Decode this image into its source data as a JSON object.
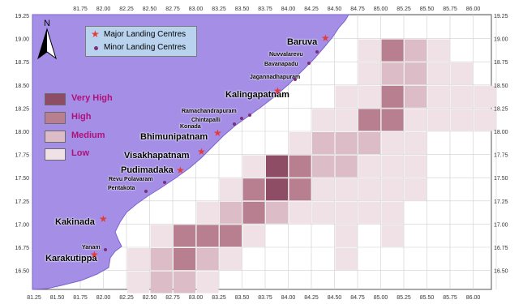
{
  "legend": {
    "major_label": "Major Landing Centres",
    "minor_label": "Minor Landing Centres"
  },
  "north_label": "N",
  "intensity_key": [
    {
      "label": "Very High",
      "color": "#8e4d64"
    },
    {
      "label": "High",
      "color": "#b77f90"
    },
    {
      "label": "Medium",
      "color": "#dcbcc6"
    },
    {
      "label": "Low",
      "color": "#efe1e5"
    }
  ],
  "x_ticks": [
    "81.25",
    "81.50",
    "81.75",
    "82.00",
    "82.25",
    "82.50",
    "82.75",
    "83.00",
    "83.25",
    "83.50",
    "83.75",
    "84.00",
    "84.25",
    "84.50",
    "84.75",
    "85.00",
    "85.25",
    "85.50",
    "85.75",
    "86.00",
    "86.25"
  ],
  "top_ticks": [
    "81.75",
    "82.00",
    "82.25",
    "82.50",
    "82.75",
    "83.00",
    "83.25",
    "83.50",
    "83.75",
    "84.00",
    "84.25",
    "84.50",
    "84.75",
    "85.00",
    "85.25",
    "85.50",
    "85.75",
    "86.00",
    "86.25"
  ],
  "y_ticks": [
    "19.25",
    "19.00",
    "18.75",
    "18.50",
    "18.25",
    "18.00",
    "17.75",
    "17.50",
    "17.25",
    "17.00",
    "16.75",
    "16.50"
  ],
  "y_ticks_right": [
    "19.25",
    "19.00",
    "18.75",
    "18.50",
    "18.25",
    "18.00",
    "17.75",
    "17.50",
    "17.25",
    "17.00",
    "16.75",
    "16.50"
  ],
  "places_major": [
    "Baruva",
    "Kalingapatnam",
    "Bhimunipatnam",
    "Visakhapatnam",
    "Pudimadaka",
    "Kakinada",
    "Karakutippa"
  ],
  "places_minor": [
    "Nuvvalarevu",
    "Bavanapadu",
    "Jagannadhapuram",
    "Ramachandrapuram",
    "Chintapalli",
    "Konada",
    "Revu Polavaram",
    "Pentakota",
    "Yanam"
  ],
  "colors": {
    "land": "#a58fe6",
    "land_edge": "#7b63cf",
    "sea": "#ffffff",
    "grid": "#cfcfcf",
    "star": "#e23b3b",
    "minor_dot": "#7a2f7a",
    "label_accent": "#b0107a"
  },
  "cells": [
    {
      "lon": 85.0,
      "lat": 19.0,
      "level": "high"
    },
    {
      "lon": 85.25,
      "lat": 19.0,
      "level": "medium"
    },
    {
      "lon": 85.5,
      "lat": 19.0,
      "level": "low"
    },
    {
      "lon": 84.75,
      "lat": 19.0,
      "level": "low"
    },
    {
      "lon": 85.0,
      "lat": 18.75,
      "level": "medium"
    },
    {
      "lon": 85.25,
      "lat": 18.75,
      "level": "medium"
    },
    {
      "lon": 85.5,
      "lat": 18.75,
      "level": "low"
    },
    {
      "lon": 85.75,
      "lat": 18.75,
      "level": "low"
    },
    {
      "lon": 84.75,
      "lat": 18.75,
      "level": "low"
    },
    {
      "lon": 85.0,
      "lat": 18.5,
      "level": "high"
    },
    {
      "lon": 85.25,
      "lat": 18.5,
      "level": "medium"
    },
    {
      "lon": 85.5,
      "lat": 18.5,
      "level": "low"
    },
    {
      "lon": 85.75,
      "lat": 18.5,
      "level": "low"
    },
    {
      "lon": 86.0,
      "lat": 18.5,
      "level": "low"
    },
    {
      "lon": 84.75,
      "lat": 18.5,
      "level": "low"
    },
    {
      "lon": 84.5,
      "lat": 18.5,
      "level": "low"
    },
    {
      "lon": 84.75,
      "lat": 18.25,
      "level": "high"
    },
    {
      "lon": 85.0,
      "lat": 18.25,
      "level": "high"
    },
    {
      "lon": 84.5,
      "lat": 18.25,
      "level": "low"
    },
    {
      "lon": 85.25,
      "lat": 18.25,
      "level": "low"
    },
    {
      "lon": 85.5,
      "lat": 18.25,
      "level": "low"
    },
    {
      "lon": 85.75,
      "lat": 18.25,
      "level": "low"
    },
    {
      "lon": 86.0,
      "lat": 18.25,
      "level": "low"
    },
    {
      "lon": 84.25,
      "lat": 18.25,
      "level": "low"
    },
    {
      "lon": 84.25,
      "lat": 18.0,
      "level": "medium"
    },
    {
      "lon": 84.5,
      "lat": 18.0,
      "level": "medium"
    },
    {
      "lon": 84.75,
      "lat": 18.0,
      "level": "medium"
    },
    {
      "lon": 85.0,
      "lat": 18.0,
      "level": "low"
    },
    {
      "lon": 85.25,
      "lat": 18.0,
      "level": "low"
    },
    {
      "lon": 84.0,
      "lat": 18.0,
      "level": "low"
    },
    {
      "lon": 83.75,
      "lat": 17.75,
      "level": "veryhigh"
    },
    {
      "lon": 84.0,
      "lat": 17.75,
      "level": "high"
    },
    {
      "lon": 84.25,
      "lat": 17.75,
      "level": "medium"
    },
    {
      "lon": 84.5,
      "lat": 17.75,
      "level": "medium"
    },
    {
      "lon": 84.75,
      "lat": 17.75,
      "level": "low"
    },
    {
      "lon": 85.0,
      "lat": 17.75,
      "level": "low"
    },
    {
      "lon": 85.25,
      "lat": 17.75,
      "level": "low"
    },
    {
      "lon": 83.5,
      "lat": 17.75,
      "level": "low"
    },
    {
      "lon": 83.5,
      "lat": 17.5,
      "level": "high"
    },
    {
      "lon": 83.75,
      "lat": 17.5,
      "level": "veryhigh"
    },
    {
      "lon": 84.0,
      "lat": 17.5,
      "level": "high"
    },
    {
      "lon": 84.25,
      "lat": 17.5,
      "level": "low"
    },
    {
      "lon": 84.5,
      "lat": 17.5,
      "level": "low"
    },
    {
      "lon": 84.75,
      "lat": 17.5,
      "level": "low"
    },
    {
      "lon": 85.0,
      "lat": 17.5,
      "level": "low"
    },
    {
      "lon": 85.25,
      "lat": 17.5,
      "level": "low"
    },
    {
      "lon": 83.25,
      "lat": 17.5,
      "level": "low"
    },
    {
      "lon": 83.25,
      "lat": 17.25,
      "level": "medium"
    },
    {
      "lon": 83.5,
      "lat": 17.25,
      "level": "high"
    },
    {
      "lon": 83.75,
      "lat": 17.25,
      "level": "medium"
    },
    {
      "lon": 84.0,
      "lat": 17.25,
      "level": "low"
    },
    {
      "lon": 84.25,
      "lat": 17.25,
      "level": "low"
    },
    {
      "lon": 84.5,
      "lat": 17.25,
      "level": "low"
    },
    {
      "lon": 84.75,
      "lat": 17.25,
      "level": "low"
    },
    {
      "lon": 85.0,
      "lat": 17.25,
      "level": "low"
    },
    {
      "lon": 83.0,
      "lat": 17.25,
      "level": "low"
    },
    {
      "lon": 82.75,
      "lat": 17.0,
      "level": "high"
    },
    {
      "lon": 83.0,
      "lat": 17.0,
      "level": "high"
    },
    {
      "lon": 83.25,
      "lat": 17.0,
      "level": "high"
    },
    {
      "lon": 82.5,
      "lat": 17.0,
      "level": "low"
    },
    {
      "lon": 83.5,
      "lat": 17.0,
      "level": "low"
    },
    {
      "lon": 84.5,
      "lat": 17.0,
      "level": "low"
    },
    {
      "lon": 85.0,
      "lat": 17.0,
      "level": "low"
    },
    {
      "lon": 82.5,
      "lat": 16.75,
      "level": "medium"
    },
    {
      "lon": 82.75,
      "lat": 16.75,
      "level": "high"
    },
    {
      "lon": 83.0,
      "lat": 16.75,
      "level": "medium"
    },
    {
      "lon": 83.25,
      "lat": 16.75,
      "level": "low"
    },
    {
      "lon": 82.25,
      "lat": 16.75,
      "level": "low"
    },
    {
      "lon": 84.5,
      "lat": 16.75,
      "level": "low"
    },
    {
      "lon": 82.5,
      "lat": 16.5,
      "level": "medium"
    },
    {
      "lon": 82.75,
      "lat": 16.5,
      "level": "medium"
    },
    {
      "lon": 83.0,
      "lat": 16.5,
      "level": "low"
    },
    {
      "lon": 82.25,
      "lat": 16.5,
      "level": "low"
    }
  ]
}
